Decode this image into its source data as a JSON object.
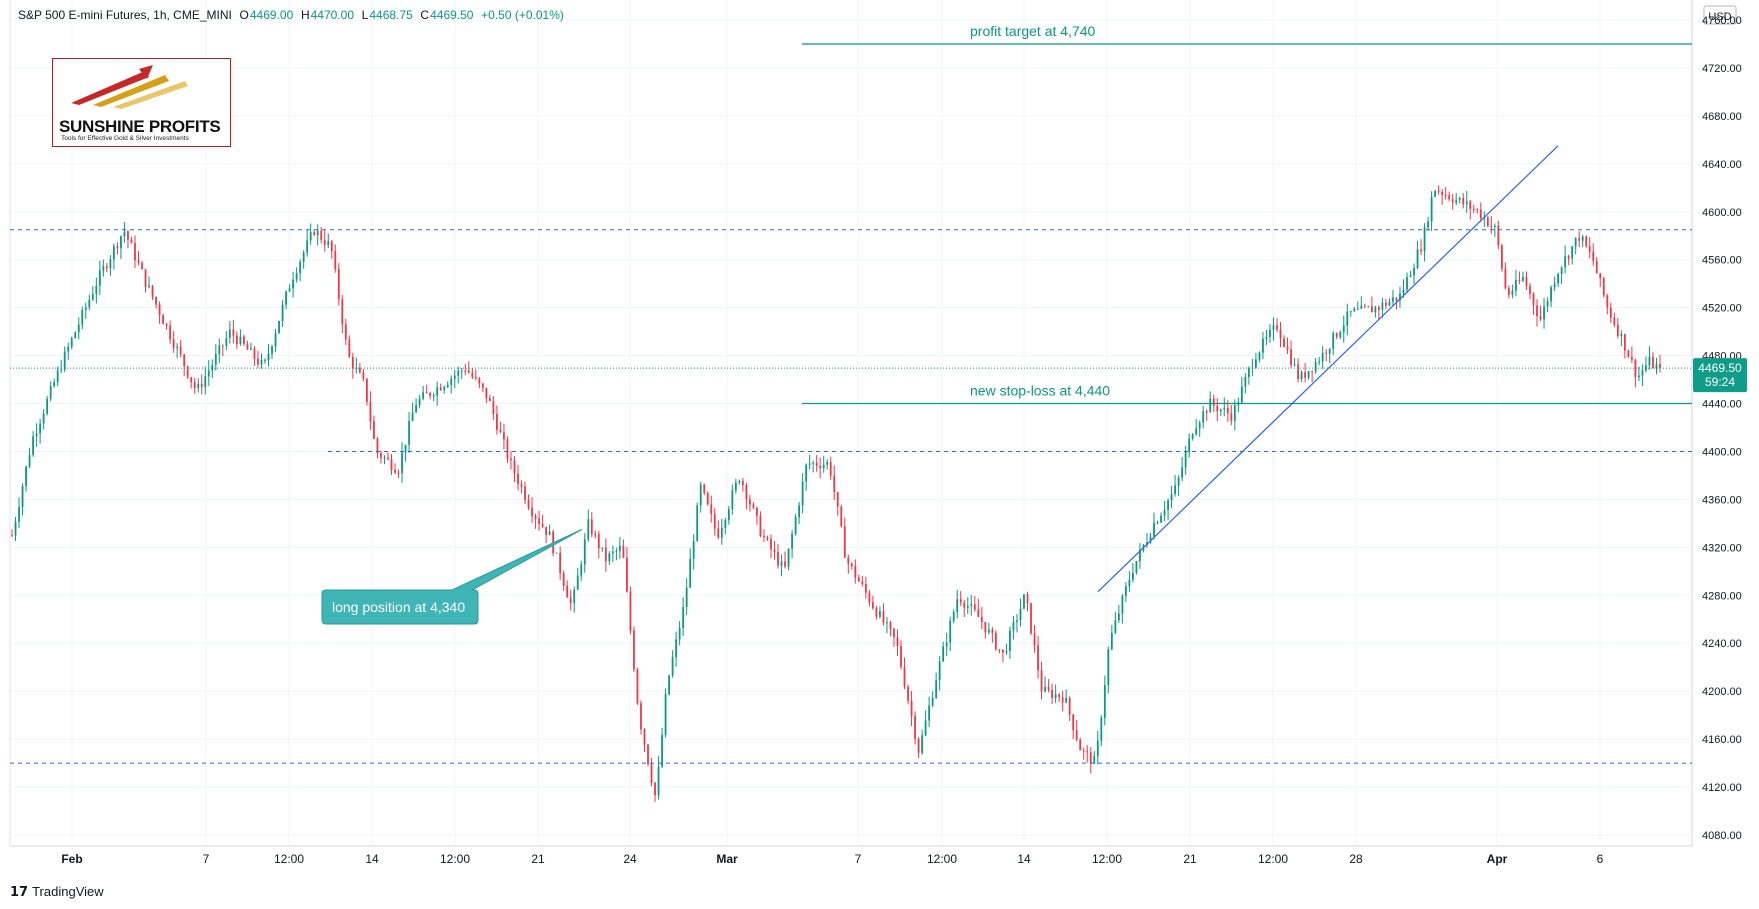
{
  "header": {
    "symbol": "S&P 500 E-mini Futures, 1h, CME_MINI",
    "o_label": "O",
    "o_value": "4469.00",
    "h_label": "H",
    "h_value": "4470.00",
    "l_label": "L",
    "l_value": "4468.75",
    "c_label": "C",
    "c_value": "4469.50",
    "change": "+0.50 (+0.01%)"
  },
  "logo": {
    "name": "SUNSHINE PROFITS",
    "tagline": "Tools for Effective Gold & Silver Investments"
  },
  "footer": {
    "brand": "TradingView"
  },
  "price_badge": {
    "price": "4469.50",
    "countdown": "59:24"
  },
  "colors": {
    "up": "#089981",
    "down": "#f23645",
    "annotation": "#089981",
    "support_lines": "#2962ff",
    "trendline": "#2962ff",
    "badge": "#0f9d8a",
    "callout": "#3fb5b5"
  },
  "chart_data": {
    "type": "candlestick",
    "title": "S&P 500 E-mini Futures, 1h, CME_MINI",
    "currency": "USD",
    "y_ticks": [
      4080,
      4120,
      4160,
      4200,
      4240,
      4280,
      4320,
      4360,
      4400,
      4440,
      4480,
      4520,
      4560,
      4600,
      4640,
      4680,
      4720,
      4760
    ],
    "x_ticks": [
      "Feb",
      "7",
      "12:00",
      "14",
      "12:00",
      "21",
      "24",
      "Mar",
      "7",
      "12:00",
      "14",
      "12:00",
      "21",
      "12:00",
      "28",
      "Apr",
      "6"
    ],
    "ylim": [
      4063,
      4783
    ],
    "grid": true,
    "last_price": 4469.5,
    "anchors": [
      [
        0,
        4330
      ],
      [
        18,
        4410
      ],
      [
        45,
        4475
      ],
      [
        75,
        4540
      ],
      [
        100,
        4585
      ],
      [
        120,
        4540
      ],
      [
        145,
        4490
      ],
      [
        165,
        4450
      ],
      [
        195,
        4500
      ],
      [
        225,
        4470
      ],
      [
        250,
        4545
      ],
      [
        270,
        4585
      ],
      [
        285,
        4570
      ],
      [
        300,
        4480
      ],
      [
        315,
        4455
      ],
      [
        325,
        4400
      ],
      [
        345,
        4385
      ],
      [
        360,
        4440
      ],
      [
        390,
        4460
      ],
      [
        405,
        4470
      ],
      [
        425,
        4445
      ],
      [
        445,
        4390
      ],
      [
        465,
        4350
      ],
      [
        480,
        4330
      ],
      [
        500,
        4270
      ],
      [
        515,
        4340
      ],
      [
        530,
        4310
      ],
      [
        545,
        4320
      ],
      [
        560,
        4180
      ],
      [
        575,
        4110
      ],
      [
        585,
        4205
      ],
      [
        600,
        4270
      ],
      [
        615,
        4370
      ],
      [
        630,
        4330
      ],
      [
        650,
        4380
      ],
      [
        670,
        4330
      ],
      [
        690,
        4300
      ],
      [
        710,
        4390
      ],
      [
        730,
        4390
      ],
      [
        745,
        4310
      ],
      [
        770,
        4270
      ],
      [
        790,
        4240
      ],
      [
        810,
        4150
      ],
      [
        825,
        4210
      ],
      [
        845,
        4280
      ],
      [
        865,
        4260
      ],
      [
        885,
        4230
      ],
      [
        905,
        4280
      ],
      [
        920,
        4200
      ],
      [
        940,
        4195
      ],
      [
        955,
        4150
      ],
      [
        968,
        4140
      ],
      [
        980,
        4240
      ],
      [
        1000,
        4300
      ],
      [
        1020,
        4340
      ],
      [
        1040,
        4370
      ],
      [
        1055,
        4420
      ],
      [
        1070,
        4440
      ],
      [
        1090,
        4430
      ],
      [
        1110,
        4480
      ],
      [
        1130,
        4505
      ],
      [
        1150,
        4460
      ],
      [
        1170,
        4480
      ],
      [
        1195,
        4515
      ],
      [
        1220,
        4520
      ],
      [
        1240,
        4530
      ],
      [
        1260,
        4575
      ],
      [
        1270,
        4620
      ],
      [
        1290,
        4610
      ],
      [
        1310,
        4600
      ],
      [
        1325,
        4585
      ],
      [
        1335,
        4530
      ],
      [
        1350,
        4545
      ],
      [
        1365,
        4510
      ],
      [
        1380,
        4550
      ],
      [
        1400,
        4580
      ],
      [
        1412,
        4560
      ],
      [
        1425,
        4520
      ],
      [
        1440,
        4490
      ],
      [
        1452,
        4462
      ],
      [
        1462,
        4475
      ],
      [
        1472,
        4469
      ]
    ]
  },
  "annotations": {
    "profit_target": {
      "text": "profit target at 4,740",
      "price": 4740
    },
    "stop_loss": {
      "text": "new stop-loss at 4,440",
      "price": 4440
    },
    "long_position": {
      "text": "long position at 4,340",
      "price": 4340
    },
    "horizontal_levels": [
      4585,
      4400,
      4140
    ],
    "trendline": {
      "from_price": 4283,
      "to_price": 4655
    }
  }
}
